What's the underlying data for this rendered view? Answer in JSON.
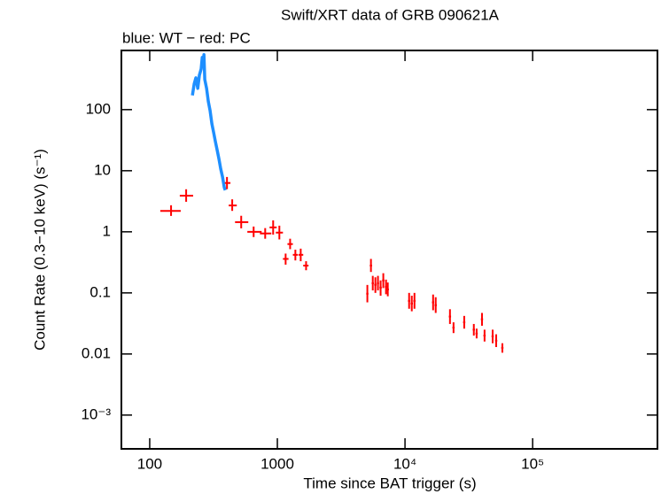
{
  "chart_data": {
    "type": "scatter",
    "title": "Swift/XRT data of GRB 090621A",
    "subtitle": "blue: WT − red: PC",
    "x_label": "Time since BAT trigger (s)",
    "y_label": "Count Rate (0.3−10 keV) (s⁻¹)",
    "xscale": "log",
    "yscale": "log",
    "xlim": [
      60,
      950000
    ],
    "ylim": [
      0.00028,
      930
    ],
    "xticks": [
      100,
      1000,
      {
        "value": 10000,
        "label": "10⁴"
      },
      {
        "value": 100000,
        "label": "10⁵"
      }
    ],
    "yticks": [
      {
        "value": 0.001,
        "label": "10⁻³"
      },
      0.01,
      0.1,
      1,
      10,
      100
    ],
    "series": [
      {
        "color": "#1e8fff",
        "mode": "line",
        "x": [
          216,
          223,
          230,
          238,
          245,
          253,
          258,
          262,
          266,
          270,
          279,
          288,
          297,
          307,
          317,
          327,
          338,
          349,
          360,
          372,
          384,
          391
        ],
        "values": [
          171,
          263,
          332,
          223,
          367,
          464,
          716,
          567,
          793,
          311,
          223,
          135,
          97,
          58.6,
          42,
          30,
          21.5,
          15.4,
          10.7,
          7.9,
          5.3,
          4.8
        ]
      },
      {
        "color": "#ff0000",
        "mode": "errorbar",
        "x": [
          147,
          193,
          403,
          443,
          521,
          652,
          803,
          927,
          1037,
          1161,
          1259,
          1384,
          1524,
          1679,
          5070,
          5410,
          5590,
          5860,
          6140,
          6440,
          6760,
          7100,
          7330,
          10770,
          11300,
          11860,
          16600,
          17400,
          22500,
          24000,
          29100,
          34600,
          36400,
          40100,
          42000,
          48600,
          51800,
          57900
        ],
        "x_lo": [
          121,
          172,
          388,
          416,
          466,
          582,
          730,
          869,
          973,
          1106,
          1200,
          1323,
          1467,
          1595,
          4970,
          5300,
          5480,
          5740,
          6020,
          6310,
          6620,
          6960,
          7180,
          10550,
          11070,
          11620,
          16270,
          17050,
          22050,
          23520,
          28520,
          33900,
          35670,
          39300,
          41160,
          47630,
          50760,
          56740
        ],
        "x_hi": [
          175,
          219,
          429,
          481,
          592,
          753,
          897,
          988,
          1106,
          1223,
          1323,
          1449,
          1595,
          1755,
          5170,
          5520,
          5700,
          5980,
          6260,
          6570,
          6900,
          7240,
          7480,
          10990,
          11530,
          12100,
          16930,
          17750,
          22950,
          24480,
          29680,
          35300,
          37130,
          40900,
          42840,
          49570,
          52840,
          59060
        ],
        "values": [
          2.2,
          3.9,
          6.3,
          2.7,
          1.44,
          1.0,
          0.94,
          1.18,
          0.97,
          0.36,
          0.63,
          0.42,
          0.42,
          0.28,
          0.097,
          0.28,
          0.144,
          0.136,
          0.144,
          0.122,
          0.16,
          0.126,
          0.114,
          0.074,
          0.067,
          0.074,
          0.07,
          0.063,
          0.041,
          0.027,
          0.033,
          0.025,
          0.0216,
          0.037,
          0.02,
          0.0195,
          0.0165,
          0.0126
        ],
        "y_lo": [
          1.82,
          3.1,
          5.0,
          2.2,
          1.14,
          0.82,
          0.77,
          0.9,
          0.75,
          0.29,
          0.52,
          0.34,
          0.33,
          0.235,
          0.07,
          0.22,
          0.11,
          0.1,
          0.11,
          0.09,
          0.12,
          0.095,
          0.088,
          0.055,
          0.05,
          0.055,
          0.052,
          0.047,
          0.031,
          0.022,
          0.026,
          0.02,
          0.018,
          0.029,
          0.016,
          0.015,
          0.013,
          0.0105
        ],
        "y_hi": [
          2.72,
          4.97,
          7.9,
          3.4,
          1.83,
          1.22,
          1.15,
          1.54,
          1.26,
          0.44,
          0.77,
          0.51,
          0.53,
          0.33,
          0.135,
          0.36,
          0.19,
          0.18,
          0.19,
          0.16,
          0.21,
          0.165,
          0.148,
          0.1,
          0.09,
          0.1,
          0.094,
          0.085,
          0.054,
          0.033,
          0.042,
          0.031,
          0.026,
          0.047,
          0.025,
          0.025,
          0.021,
          0.015
        ]
      }
    ]
  }
}
